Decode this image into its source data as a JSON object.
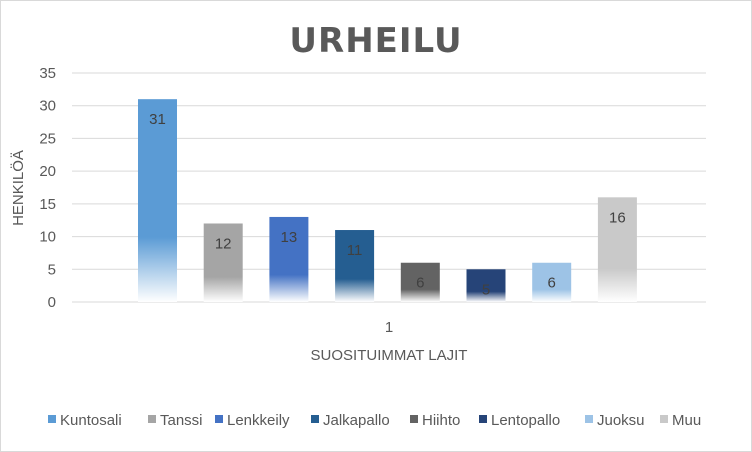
{
  "chart_data": {
    "type": "bar",
    "title": "URHEILU",
    "xlabel": "SUOSITUIMMAT LAJIT",
    "ylabel": "HENKILÖÄ",
    "categories": [
      "1"
    ],
    "ylim": [
      0,
      35
    ],
    "yticks": [
      0,
      5,
      10,
      15,
      20,
      25,
      30,
      35
    ],
    "grid": true,
    "legend_position": "bottom",
    "series": [
      {
        "name": "Kuntosali",
        "values": [
          31
        ],
        "color": "#5b9bd5"
      },
      {
        "name": "Tanssi",
        "values": [
          12
        ],
        "color": "#a5a5a5"
      },
      {
        "name": "Lenkkeily",
        "values": [
          13
        ],
        "color": "#4472c4"
      },
      {
        "name": "Jalkapallo",
        "values": [
          11
        ],
        "color": "#255e91"
      },
      {
        "name": "Hiihto",
        "values": [
          6
        ],
        "color": "#636363"
      },
      {
        "name": "Lentopallo",
        "values": [
          5
        ],
        "color": "#264478"
      },
      {
        "name": "Juoksu",
        "values": [
          6
        ],
        "color": "#9dc3e6"
      },
      {
        "name": "Muu",
        "values": [
          16
        ],
        "color": "#c9c9c9"
      }
    ]
  }
}
